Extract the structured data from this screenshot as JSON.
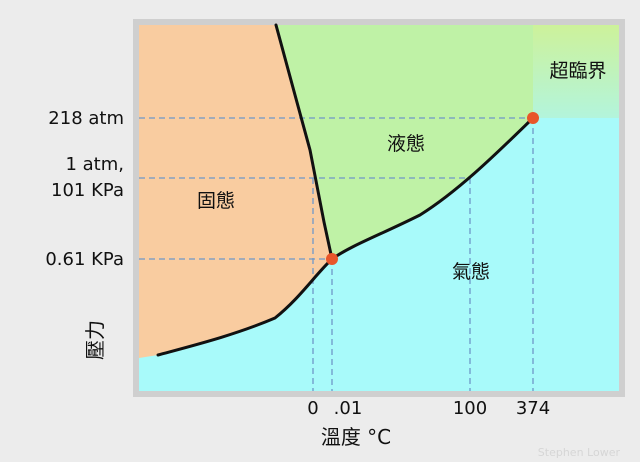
{
  "diagram": {
    "regions": {
      "solid": "固態",
      "liquid": "液態",
      "gas": "氣態",
      "supercritical": "超臨界"
    },
    "y_ticks": {
      "p218": "218 atm",
      "atm_line1": "1 atm,",
      "atm_line2": "101 KPa",
      "p061": "0.61 KPa"
    },
    "x_ticks": {
      "t0": "0",
      "t001": ".01",
      "t100": "100",
      "t374": "374"
    },
    "axis_labels": {
      "y": "壓力",
      "x": "溫度 °C"
    },
    "credit": "Stephen Lower",
    "colors": {
      "solid": "#f9cca0",
      "liquid": "#bff2a6",
      "gas": "#a8fafa",
      "supercritical_top": "#cdf29a",
      "supercritical_bottom": "#b3f4dc",
      "curve": "#111111",
      "points": "#e8562a",
      "guides": "#6f97c8",
      "frame": "#d4d4d4"
    }
  }
}
